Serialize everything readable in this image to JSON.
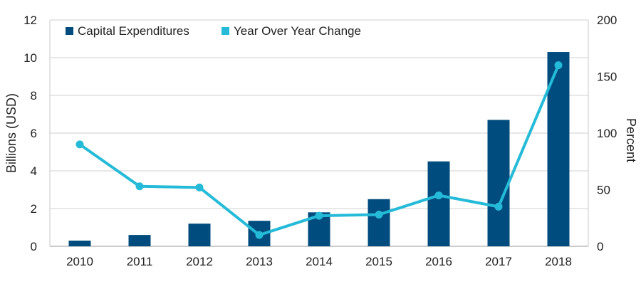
{
  "chart_data": {
    "type": "bar",
    "categories": [
      "2010",
      "2011",
      "2012",
      "2013",
      "2014",
      "2015",
      "2016",
      "2017",
      "2018"
    ],
    "series": [
      {
        "name": "Capital Expenditures",
        "type": "bar",
        "axis": "left",
        "color": "#004C7E",
        "values": [
          0.3,
          0.6,
          1.2,
          1.35,
          1.8,
          2.5,
          4.5,
          6.7,
          10.3
        ]
      },
      {
        "name": "Year Over Year Change",
        "type": "line",
        "axis": "right",
        "color": "#25BBD8",
        "values": [
          90,
          53,
          52,
          10,
          27,
          28,
          45,
          35,
          160
        ]
      }
    ],
    "ylabel": "Billions (USD)",
    "y2label": "Percent",
    "ylim": [
      0,
      12
    ],
    "y2lim": [
      0,
      200
    ],
    "yticks": [
      "0",
      "2",
      "4",
      "6",
      "8",
      "10",
      "12"
    ],
    "y2ticks": [
      "0",
      "50",
      "100",
      "150",
      "200"
    ],
    "grid": true,
    "legend_position": "top-left"
  }
}
